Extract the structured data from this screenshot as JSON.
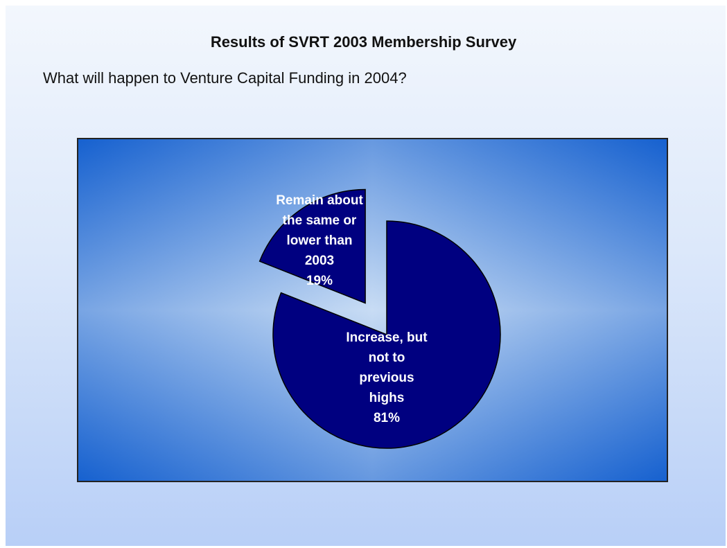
{
  "slide": {
    "title": "Results of SVRT 2003 Membership Survey",
    "question": "What will happen to Venture Capital Funding in 2004?"
  },
  "colors": {
    "slice_fill": "#000080",
    "panel_edge": "#1560cf",
    "panel_center": "#c8dcf4",
    "label_text": "#ffffff"
  },
  "chart_data": {
    "type": "pie",
    "title": "",
    "slices": [
      {
        "label": "Remain about the same or lower than 2003",
        "value": 19,
        "display": "19%",
        "exploded": true
      },
      {
        "label": "Increase, but not to previous highs",
        "value": 81,
        "display": "81%",
        "exploded": false
      }
    ],
    "label_lines": [
      [
        "Remain about",
        "the same or",
        "lower than",
        "2003",
        "19%"
      ],
      [
        "Increase, but",
        "not to",
        "previous",
        "highs",
        "81%"
      ]
    ]
  }
}
